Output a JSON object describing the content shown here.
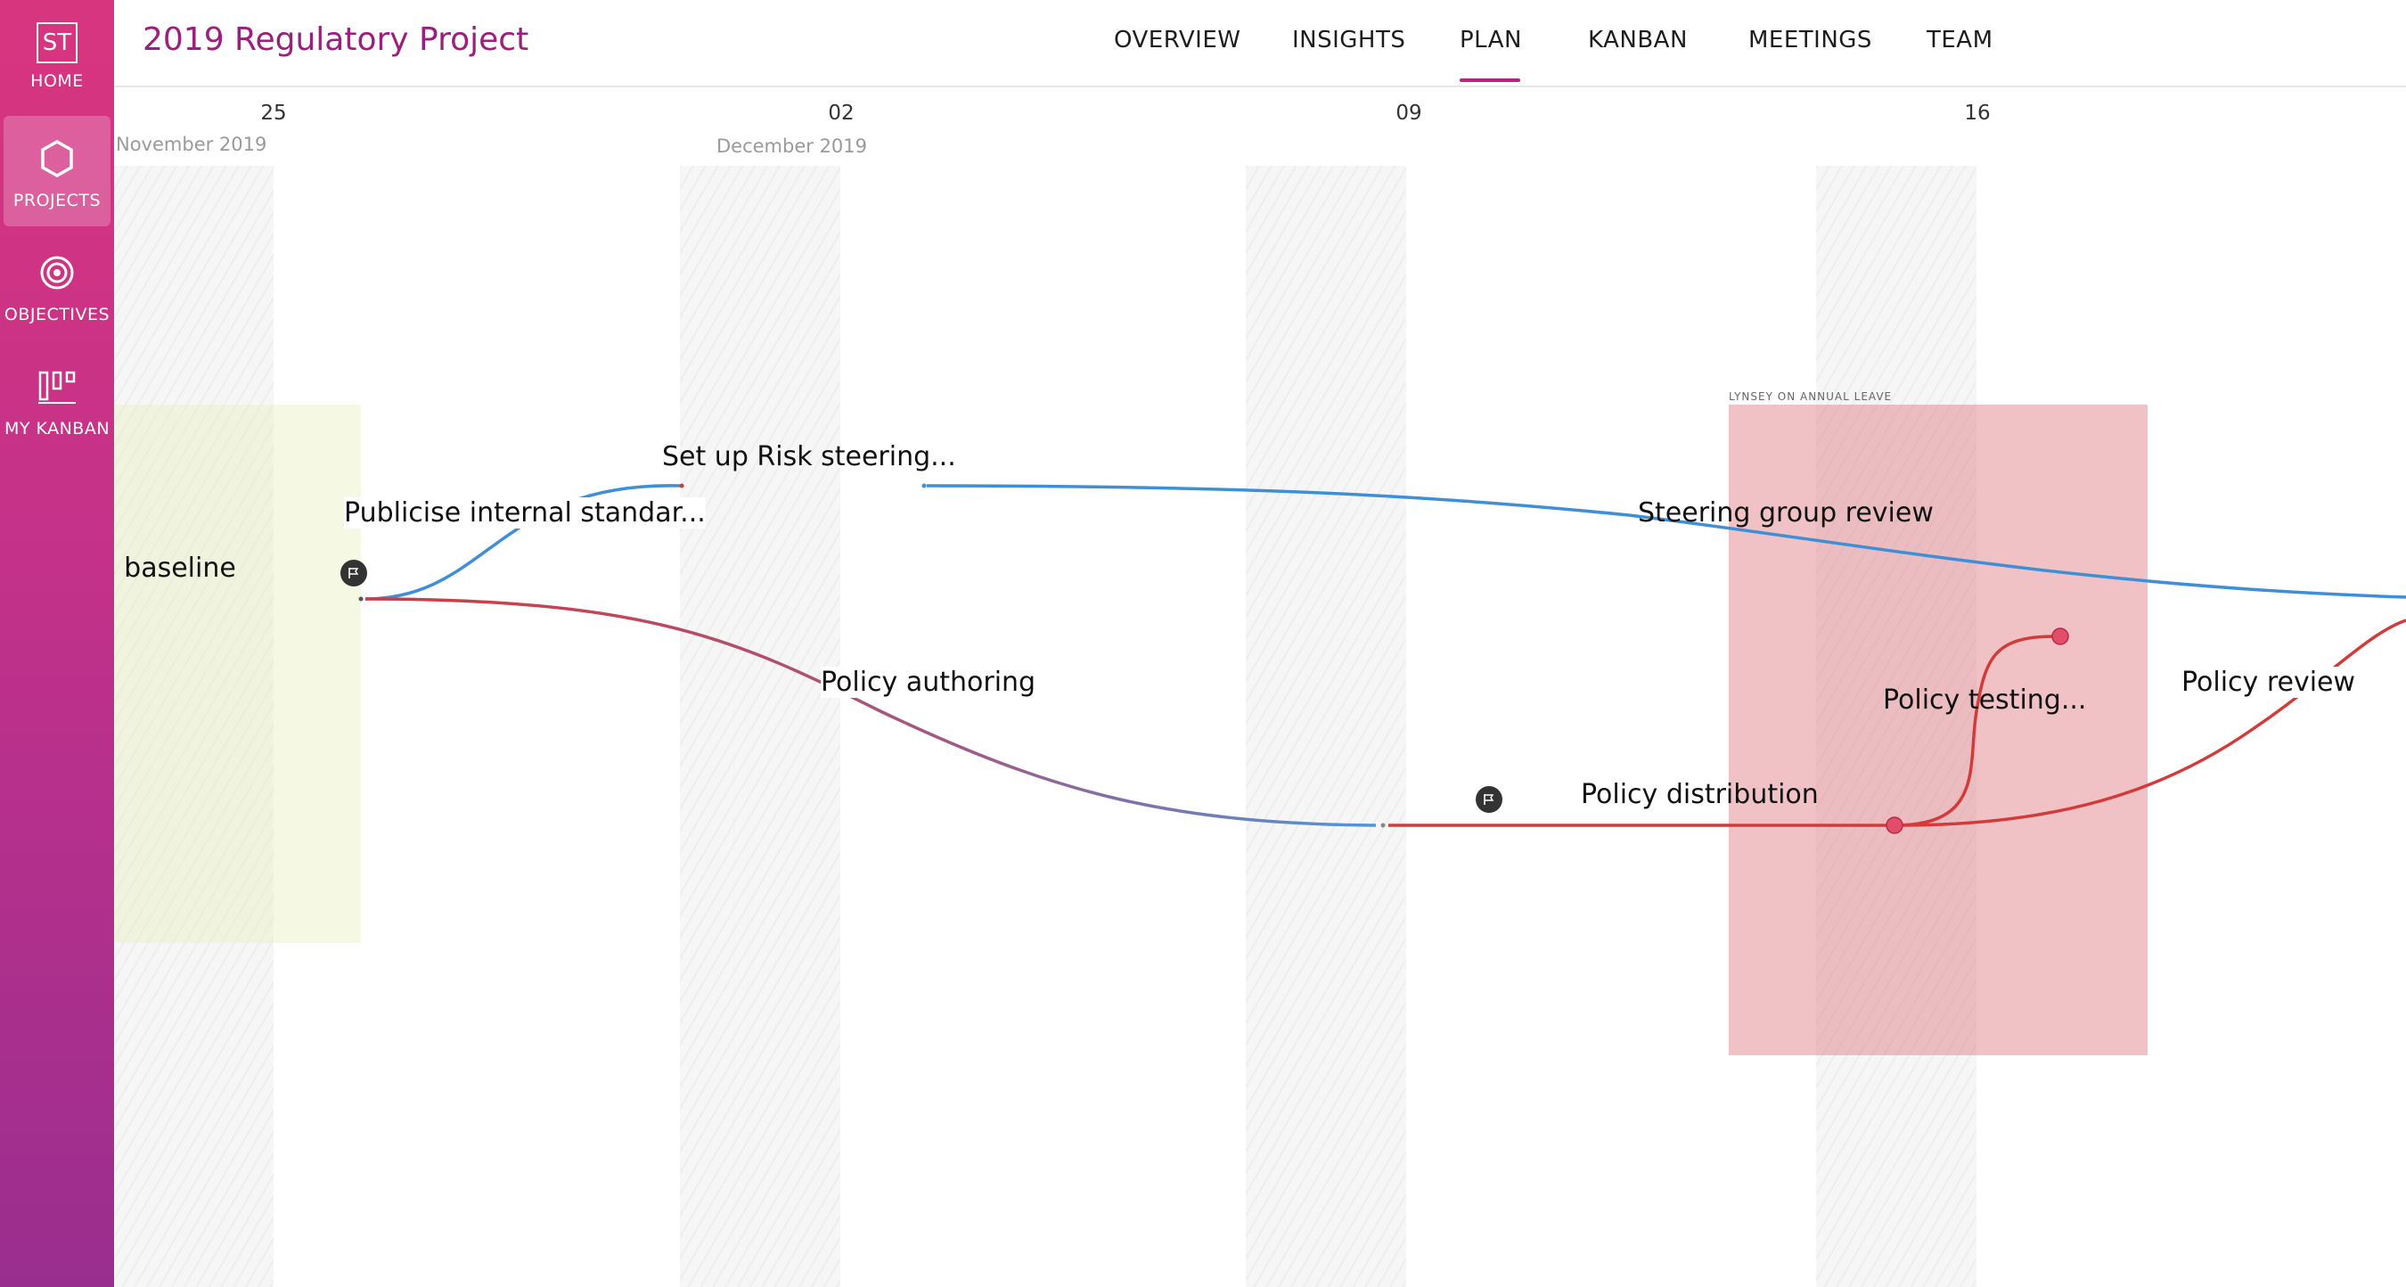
{
  "app": {
    "logo_text": "ST",
    "project_title": "2019 Regulatory Project"
  },
  "sidebar": {
    "items": [
      {
        "label": "HOME",
        "icon": "logo-icon"
      },
      {
        "label": "PROJECTS",
        "icon": "hexagon-icon",
        "active": true
      },
      {
        "label": "OBJECTIVES",
        "icon": "target-icon"
      },
      {
        "label": "MY KANBAN",
        "icon": "kanban-icon"
      }
    ]
  },
  "nav": {
    "tabs": [
      {
        "label": "OVERVIEW"
      },
      {
        "label": "INSIGHTS"
      },
      {
        "label": "PLAN",
        "active": true
      },
      {
        "label": "KANBAN"
      },
      {
        "label": "MEETINGS"
      },
      {
        "label": "TEAM"
      }
    ]
  },
  "timeline": {
    "dates": [
      "25",
      "02",
      "09",
      "16"
    ],
    "months": [
      "November 2019",
      "December 2019"
    ],
    "leave_label": "LYNSEY ON ANNUAL LEAVE",
    "tasks": {
      "baseline": "s baseline",
      "publicise": "Publicise internal standar...",
      "risk_steering": "Set up Risk steering...",
      "steering_review": "Steering group review",
      "policy_authoring": "Policy authoring",
      "policy_distribution": "Policy distribution",
      "policy_testing": "Policy testing...",
      "policy_review": "Policy review"
    },
    "colors": {
      "red_line": "#d33a3a",
      "blue_line": "#3f8fd6",
      "leave_zone": "#e9a0a4",
      "baseline_zone": "#eef3d6",
      "accent": "#b3277f"
    }
  }
}
